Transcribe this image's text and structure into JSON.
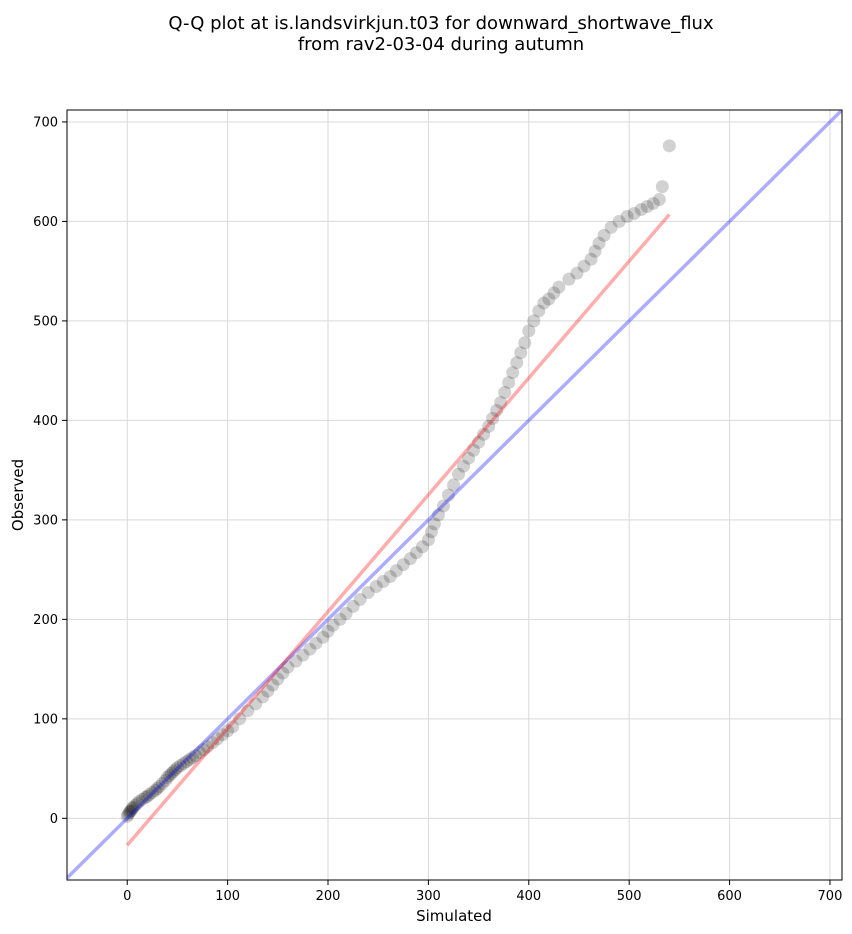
{
  "chart_data": {
    "type": "scatter",
    "title": "Q-Q plot at is.landsvirkjun.t03 for downward_shortwave_flux\nfrom rav2-03-04 during autumn",
    "title_lines": [
      "Q-Q plot at is.landsvirkjun.t03 for downward_shortwave_flux",
      "from rav2-03-04 during autumn"
    ],
    "xlabel": "Simulated",
    "ylabel": "Observed",
    "xlim": [
      -60,
      712
    ],
    "ylim": [
      -62,
      712
    ],
    "xticks": [
      0,
      100,
      200,
      300,
      400,
      500,
      600,
      700
    ],
    "yticks": [
      0,
      100,
      200,
      300,
      400,
      500,
      600,
      700
    ],
    "grid": true,
    "colors": {
      "points": "#000000",
      "identity_line": "#0000ff",
      "fit_line": "#ff0000"
    },
    "series": [
      {
        "type": "scatter",
        "x": [
          0,
          1,
          2,
          3,
          4,
          5,
          6,
          8,
          10,
          12,
          15,
          18,
          20,
          22,
          25,
          28,
          30,
          32,
          35,
          38,
          40,
          42,
          44,
          46,
          48,
          50,
          53,
          56,
          59,
          62,
          65,
          68,
          72,
          76,
          80,
          85,
          90,
          95,
          100,
          105,
          112,
          120,
          128,
          135,
          140,
          145,
          150,
          155,
          160,
          168,
          175,
          182,
          188,
          195,
          200,
          205,
          212,
          218,
          225,
          232,
          240,
          248,
          255,
          262,
          268,
          275,
          282,
          288,
          294,
          300,
          303,
          306,
          310,
          315,
          320,
          325,
          330,
          335,
          340,
          345,
          350,
          355,
          360,
          364,
          368,
          372,
          376,
          380,
          384,
          388,
          392,
          396,
          400,
          405,
          410,
          415,
          420,
          425,
          430,
          440,
          448,
          455,
          462,
          466,
          470,
          475,
          482,
          490,
          498,
          505,
          512,
          518,
          524,
          530,
          533,
          540
        ],
        "y": [
          2,
          4,
          6,
          7,
          8,
          10,
          11,
          13,
          15,
          17,
          19,
          21,
          22,
          24,
          26,
          28,
          30,
          32,
          35,
          38,
          41,
          43,
          45,
          47,
          49,
          51,
          53,
          55,
          57,
          59,
          61,
          63,
          66,
          69,
          72,
          76,
          80,
          84,
          88,
          92,
          100,
          108,
          115,
          122,
          128,
          134,
          140,
          146,
          152,
          158,
          164,
          170,
          176,
          182,
          188,
          194,
          200,
          206,
          213,
          220,
          227,
          233,
          238,
          243,
          249,
          255,
          261,
          267,
          273,
          280,
          288,
          296,
          305,
          314,
          325,
          335,
          346,
          354,
          362,
          370,
          378,
          386,
          394,
          402,
          410,
          418,
          428,
          438,
          448,
          458,
          468,
          478,
          490,
          500,
          510,
          518,
          522,
          528,
          534,
          542,
          548,
          555,
          562,
          570,
          578,
          586,
          594,
          600,
          605,
          608,
          612,
          615,
          618,
          622,
          635,
          676
        ]
      },
      {
        "name": "",
        "type": "line",
        "role": "identity",
        "x": [
          -60,
          712
        ],
        "y": [
          -60,
          712
        ]
      },
      {
        "name": "",
        "type": "line",
        "role": "fit",
        "x": [
          0,
          540
        ],
        "y": [
          -27,
          607
        ]
      }
    ]
  }
}
